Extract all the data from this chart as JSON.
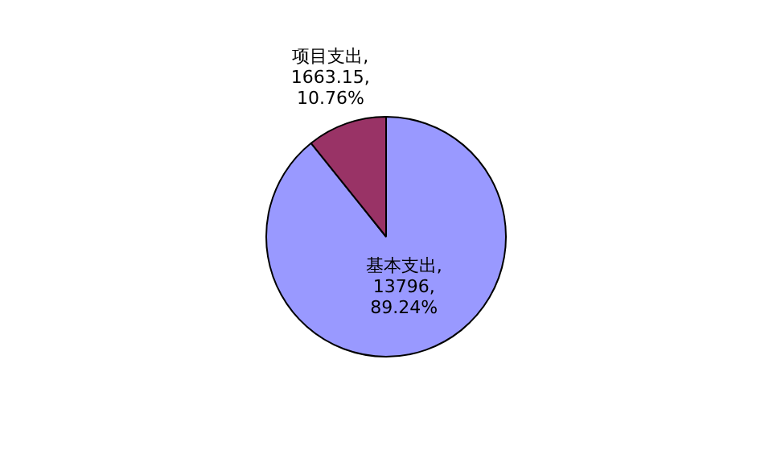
{
  "chart_data": {
    "type": "pie",
    "categories": [
      "基本支出",
      "项目支出"
    ],
    "values": [
      13796,
      1663.15
    ],
    "colors": [
      "#9999ff",
      "#993366"
    ],
    "value_labels": [
      ",\n13796,\n89.24%",
      ",\n1663.15,\n10.76%"
    ],
    "legend": false
  }
}
